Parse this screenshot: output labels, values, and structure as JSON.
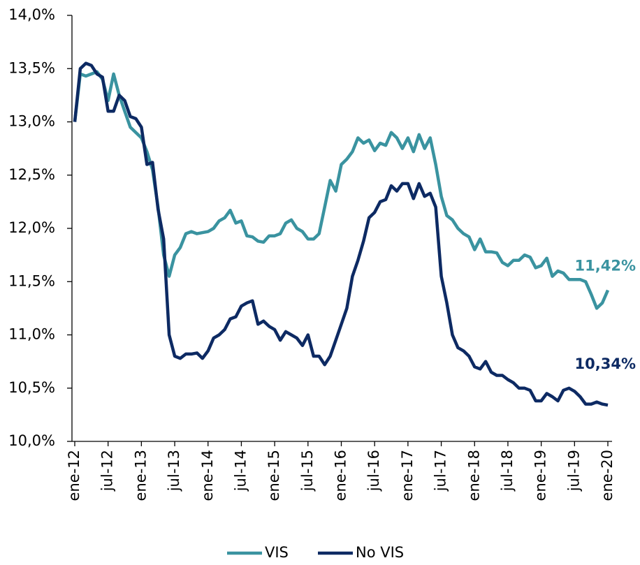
{
  "chart_data": {
    "type": "line",
    "categories": [
      "ene-12",
      null,
      null,
      null,
      null,
      null,
      "jul-12",
      null,
      null,
      null,
      null,
      null,
      "ene-13",
      null,
      null,
      null,
      null,
      null,
      "jul-13",
      null,
      null,
      null,
      null,
      null,
      "ene-14",
      null,
      null,
      null,
      null,
      null,
      "jul-14",
      null,
      null,
      null,
      null,
      null,
      "ene-15",
      null,
      null,
      null,
      null,
      null,
      "jul-15",
      null,
      null,
      null,
      null,
      null,
      "ene-16",
      null,
      null,
      null,
      null,
      null,
      "jul-16",
      null,
      null,
      null,
      null,
      null,
      "ene-17",
      null,
      null,
      null,
      null,
      null,
      "jul-17",
      null,
      null,
      null,
      null,
      null,
      "ene-18",
      null,
      null,
      null,
      null,
      null,
      "jul-18",
      null,
      null,
      null,
      null,
      null,
      "ene-19",
      null,
      null,
      null,
      null,
      null,
      "jul-19",
      null,
      null,
      null,
      null,
      null,
      "ene-20"
    ],
    "series": [
      {
        "name": "VIS",
        "color": "#3a93a0",
        "values": [
          13.0,
          13.45,
          13.43,
          13.45,
          13.47,
          13.4,
          13.2,
          13.45,
          13.25,
          13.1,
          12.95,
          12.9,
          12.85,
          12.72,
          12.55,
          12.2,
          11.75,
          11.55,
          11.75,
          11.82,
          11.95,
          11.97,
          11.95,
          11.96,
          11.97,
          12.0,
          12.07,
          12.1,
          12.17,
          12.05,
          12.07,
          11.93,
          11.92,
          11.88,
          11.87,
          11.93,
          11.93,
          11.95,
          12.05,
          12.08,
          12.0,
          11.97,
          11.9,
          11.9,
          11.95,
          12.2,
          12.45,
          12.35,
          12.6,
          12.65,
          12.72,
          12.85,
          12.8,
          12.83,
          12.73,
          12.8,
          12.78,
          12.9,
          12.85,
          12.75,
          12.85,
          12.72,
          12.88,
          12.75,
          12.85,
          12.6,
          12.3,
          12.12,
          12.08,
          12.0,
          11.95,
          11.92,
          11.8,
          11.9,
          11.78,
          11.78,
          11.77,
          11.68,
          11.65,
          11.7,
          11.7,
          11.75,
          11.73,
          11.63,
          11.65,
          11.72,
          11.55,
          11.6,
          11.58,
          11.52,
          11.52,
          11.52,
          11.5,
          11.38,
          11.25,
          11.3,
          11.42
        ],
        "value_labels": [
          null,
          null,
          null,
          null,
          null,
          null,
          null,
          null,
          null,
          null,
          null,
          null,
          null,
          null,
          null,
          null,
          null,
          null,
          null,
          null,
          null,
          null,
          null,
          null,
          null,
          null,
          null,
          null,
          null,
          null,
          null,
          null,
          null,
          null,
          null,
          null,
          null,
          null,
          null,
          null,
          null,
          null,
          null,
          null,
          null,
          null,
          null,
          null,
          null,
          null,
          null,
          null,
          null,
          null,
          null,
          null,
          null,
          null,
          null,
          null,
          null,
          null,
          null,
          null,
          null,
          null,
          null,
          null,
          null,
          null,
          null,
          null,
          null,
          null,
          null,
          null,
          null,
          null,
          null,
          null,
          null,
          null,
          null,
          null,
          null,
          null,
          null,
          null,
          null,
          null,
          null,
          null,
          null,
          null,
          null,
          null,
          "11,42%"
        ]
      },
      {
        "name": "No VIS",
        "color": "#0d2a63",
        "values": [
          13.0,
          13.5,
          13.55,
          13.53,
          13.45,
          13.42,
          13.1,
          13.1,
          13.25,
          13.2,
          13.05,
          13.03,
          12.95,
          12.6,
          12.62,
          12.18,
          11.9,
          11.0,
          10.8,
          10.78,
          10.82,
          10.82,
          10.83,
          10.78,
          10.85,
          10.97,
          11.0,
          11.05,
          11.15,
          11.17,
          11.27,
          11.3,
          11.32,
          11.1,
          11.13,
          11.08,
          11.05,
          10.95,
          11.03,
          11.0,
          10.97,
          10.9,
          11.0,
          10.8,
          10.8,
          10.72,
          10.8,
          10.95,
          11.1,
          11.25,
          11.55,
          11.7,
          11.88,
          12.1,
          12.15,
          12.25,
          12.27,
          12.4,
          12.35,
          12.42,
          12.42,
          12.28,
          12.42,
          12.3,
          12.33,
          12.2,
          11.55,
          11.3,
          11.0,
          10.88,
          10.85,
          10.8,
          10.7,
          10.68,
          10.75,
          10.65,
          10.62,
          10.62,
          10.58,
          10.55,
          10.5,
          10.5,
          10.48,
          10.38,
          10.38,
          10.45,
          10.42,
          10.38,
          10.48,
          10.5,
          10.47,
          10.42,
          10.35,
          10.35,
          10.37,
          10.35,
          10.34
        ],
        "value_labels": [
          null,
          null,
          null,
          null,
          null,
          null,
          null,
          null,
          null,
          null,
          null,
          null,
          null,
          null,
          null,
          null,
          null,
          null,
          null,
          null,
          null,
          null,
          null,
          null,
          null,
          null,
          null,
          null,
          null,
          null,
          null,
          null,
          null,
          null,
          null,
          null,
          null,
          null,
          null,
          null,
          null,
          null,
          null,
          null,
          null,
          null,
          null,
          null,
          null,
          null,
          null,
          null,
          null,
          null,
          null,
          null,
          null,
          null,
          null,
          null,
          null,
          null,
          null,
          null,
          null,
          null,
          null,
          null,
          null,
          null,
          null,
          null,
          null,
          null,
          null,
          null,
          null,
          null,
          null,
          null,
          null,
          null,
          null,
          null,
          null,
          null,
          null,
          null,
          null,
          null,
          null,
          null,
          null,
          null,
          null,
          null,
          "10,34%"
        ]
      }
    ],
    "ylim": [
      10,
      14
    ],
    "yticks": [
      {
        "value": 10,
        "label": "10,0%"
      },
      {
        "value": 10.5,
        "label": "10,5%"
      },
      {
        "value": 11,
        "label": "11,0%"
      },
      {
        "value": 11.5,
        "label": "11,5%"
      },
      {
        "value": 12,
        "label": "12,0%"
      },
      {
        "value": 12.5,
        "label": "12,5%"
      },
      {
        "value": 13,
        "label": "13,0%"
      },
      {
        "value": 13.5,
        "label": "13,5%"
      },
      {
        "value": 14,
        "label": "14,0%"
      }
    ],
    "legend": "bottom"
  }
}
